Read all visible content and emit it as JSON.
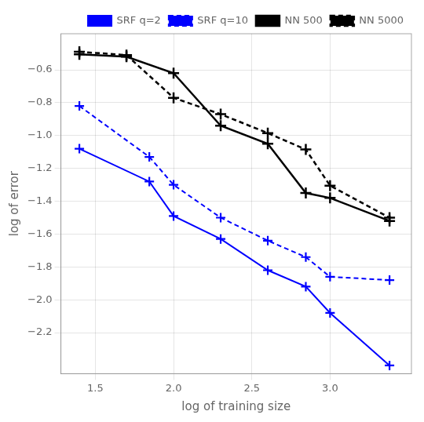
{
  "chart_data": {
    "type": "line",
    "xlabel": "log of training size",
    "ylabel": "log of error",
    "series": [
      {
        "name": "SRF q=2",
        "color": "#0000FF",
        "line_style": "solid",
        "marker": "+",
        "x": [
          1.398,
          1.845,
          2.0,
          2.301,
          2.602,
          2.845,
          3.0,
          3.38
        ],
        "values": [
          -1.08,
          -1.28,
          -1.49,
          -1.63,
          -1.82,
          -1.92,
          -2.08,
          -2.4
        ]
      },
      {
        "name": "SRF q=10",
        "color": "#0000FF",
        "line_style": "dashed",
        "marker": "+",
        "x": [
          1.398,
          1.845,
          2.0,
          2.301,
          2.602,
          2.845,
          3.0,
          3.38
        ],
        "values": [
          -0.82,
          -1.13,
          -1.3,
          -1.5,
          -1.64,
          -1.74,
          -1.86,
          -1.88
        ]
      },
      {
        "name": "NN 500",
        "color": "#000000",
        "line_style": "solid",
        "marker": "+",
        "x": [
          1.398,
          1.699,
          2.0,
          2.301,
          2.602,
          2.845,
          3.0,
          3.38
        ],
        "values": [
          -0.505,
          -0.52,
          -0.62,
          -0.94,
          -1.05,
          -1.35,
          -1.38,
          -1.52
        ]
      },
      {
        "name": "NN 5000",
        "color": "#000000",
        "line_style": "dashed",
        "marker": "+",
        "x": [
          1.398,
          1.699,
          2.0,
          2.301,
          2.602,
          2.845,
          3.0,
          3.38
        ],
        "values": [
          -0.49,
          -0.51,
          -0.77,
          -0.87,
          -0.985,
          -1.085,
          -1.305,
          -1.5
        ]
      }
    ],
    "xlim": [
      1.28,
      3.52
    ],
    "ylim": [
      -2.45,
      -0.38
    ],
    "xticks": [
      1.5,
      {
        "value": 2.0,
        "label": "2.0"
      },
      2.5,
      {
        "value": 3.0,
        "label": "3.0"
      }
    ],
    "yticks": [
      {
        "value": -0.6,
        "label": "−0.6"
      },
      {
        "value": -0.8,
        "label": "−0.8"
      },
      {
        "value": -1.0,
        "label": "−1.0"
      },
      {
        "value": -1.2,
        "label": "−1.2"
      },
      {
        "value": -1.4,
        "label": "−1.4"
      },
      {
        "value": -1.6,
        "label": "−1.6"
      },
      {
        "value": -1.8,
        "label": "−1.8"
      },
      {
        "value": -2.0,
        "label": "−2.0"
      },
      {
        "value": -2.2,
        "label": "−2.2"
      }
    ],
    "grid": true,
    "legend": "upper right"
  }
}
